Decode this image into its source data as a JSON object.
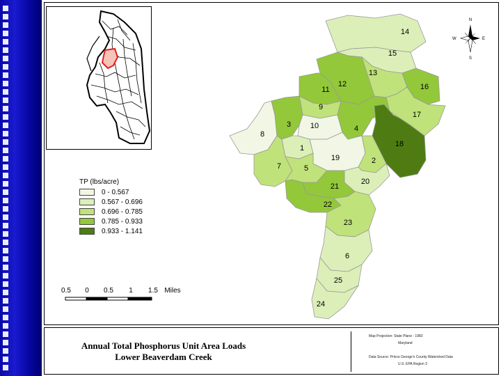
{
  "legend": {
    "title": "TP (lbs/acre)",
    "items": [
      {
        "label": "0 - 0.567",
        "color": "#f1f7e4"
      },
      {
        "label": "0.567 - 0.696",
        "color": "#dcefb8"
      },
      {
        "label": "0.696 - 0.785",
        "color": "#c0e27a"
      },
      {
        "label": "0.785 - 0.933",
        "color": "#93c83a"
      },
      {
        "label": "0.933 - 1.141",
        "color": "#4e7c12"
      }
    ]
  },
  "scale": {
    "labels": [
      "0.5",
      "0",
      "0.5",
      "1",
      "1.5"
    ],
    "unit": "Miles"
  },
  "compass": {
    "n": "N",
    "s": "S",
    "e": "E",
    "w": "W"
  },
  "subwatersheds": [
    "14",
    "15",
    "13",
    "12",
    "11",
    "16",
    "9",
    "17",
    "3",
    "10",
    "4",
    "8",
    "18",
    "1",
    "19",
    "2",
    "7",
    "5",
    "20",
    "21",
    "22",
    "23",
    "6",
    "25",
    "24"
  ],
  "title": {
    "line1": "Annual Total Phosphorus Unit Area Loads",
    "line2": "Lower Beaverdam Creek"
  },
  "notes": {
    "projection": "Map Projection: State Plane - 1983",
    "datum": "Maryland",
    "source": "Data Source: Prince George's County Watershed Data",
    "agency": "U.S. EPA Region 3"
  }
}
